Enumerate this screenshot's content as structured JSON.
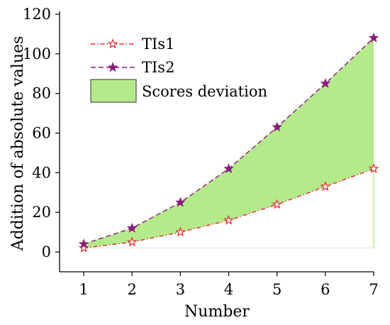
{
  "chart_data": {
    "type": "line",
    "xlabel": "Number",
    "ylabel": "Addition of absolute values",
    "x": [
      1,
      2,
      3,
      4,
      5,
      6,
      7
    ],
    "xlim": [
      0.5,
      7
    ],
    "ylim": [
      -10,
      120
    ],
    "x_ticks": [
      "1",
      "2",
      "3",
      "4",
      "5",
      "6",
      "7"
    ],
    "y_ticks": [
      "0",
      "20",
      "40",
      "60",
      "80",
      "100",
      "120"
    ],
    "y_tick_values": [
      0,
      20,
      40,
      60,
      80,
      100,
      120
    ],
    "grid": false,
    "legend_position": "top-left",
    "series": [
      {
        "name": "TIs1",
        "values": [
          2,
          5,
          10,
          16,
          24,
          33,
          42
        ],
        "color": "#e8262a",
        "marker": "star-open",
        "line_style": "dash-dot"
      },
      {
        "name": "TIs2",
        "values": [
          4,
          12,
          25,
          42,
          63,
          85,
          108
        ],
        "color": "#8b1a7f",
        "marker": "star-filled",
        "line_style": "dashed"
      }
    ],
    "fill": {
      "name": "Scores deviation",
      "between": [
        "TIs1",
        "TIs2"
      ],
      "color": "#b3eb8a",
      "edge_color": "#98d870"
    }
  }
}
